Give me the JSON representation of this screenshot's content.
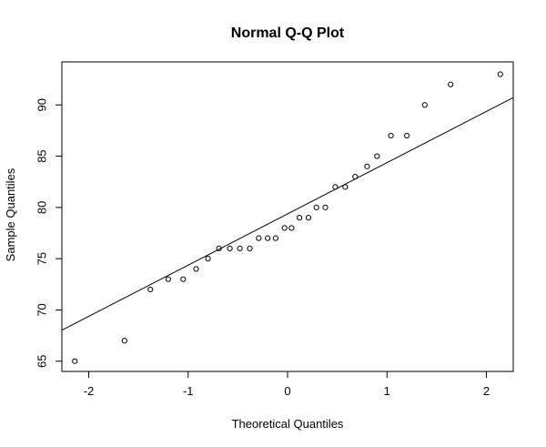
{
  "chart_data": {
    "type": "scatter",
    "title": "Normal Q-Q Plot",
    "xlabel": "Theoretical Quantiles",
    "ylabel": "Sample Quantiles",
    "xlim": [
      -2.27,
      2.27
    ],
    "ylim": [
      64,
      94.2
    ],
    "grid": false,
    "x_ticks": [
      -2,
      -1,
      0,
      1,
      2
    ],
    "y_ticks": [
      65,
      70,
      75,
      80,
      85,
      90
    ],
    "points": [
      {
        "x": -2.14,
        "y": 65
      },
      {
        "x": -1.64,
        "y": 67
      },
      {
        "x": -1.38,
        "y": 72
      },
      {
        "x": -1.2,
        "y": 73
      },
      {
        "x": -1.05,
        "y": 73
      },
      {
        "x": -0.92,
        "y": 74
      },
      {
        "x": -0.8,
        "y": 75
      },
      {
        "x": -0.69,
        "y": 76
      },
      {
        "x": -0.58,
        "y": 76
      },
      {
        "x": -0.48,
        "y": 76
      },
      {
        "x": -0.38,
        "y": 76
      },
      {
        "x": -0.29,
        "y": 77
      },
      {
        "x": -0.2,
        "y": 77
      },
      {
        "x": -0.12,
        "y": 77
      },
      {
        "x": -0.03,
        "y": 78
      },
      {
        "x": 0.04,
        "y": 78
      },
      {
        "x": 0.12,
        "y": 79
      },
      {
        "x": 0.21,
        "y": 79
      },
      {
        "x": 0.29,
        "y": 80
      },
      {
        "x": 0.38,
        "y": 80
      },
      {
        "x": 0.48,
        "y": 82
      },
      {
        "x": 0.58,
        "y": 82
      },
      {
        "x": 0.68,
        "y": 83
      },
      {
        "x": 0.8,
        "y": 84
      },
      {
        "x": 0.9,
        "y": 85
      },
      {
        "x": 1.04,
        "y": 87
      },
      {
        "x": 1.2,
        "y": 87
      },
      {
        "x": 1.38,
        "y": 90
      },
      {
        "x": 1.64,
        "y": 92
      },
      {
        "x": 2.14,
        "y": 93
      }
    ],
    "reference_line": {
      "intercept": 79.37,
      "slope": 5.0
    },
    "colors": {
      "points": "#000000",
      "line": "#000000",
      "axes": "#000000",
      "background": "#ffffff"
    }
  }
}
